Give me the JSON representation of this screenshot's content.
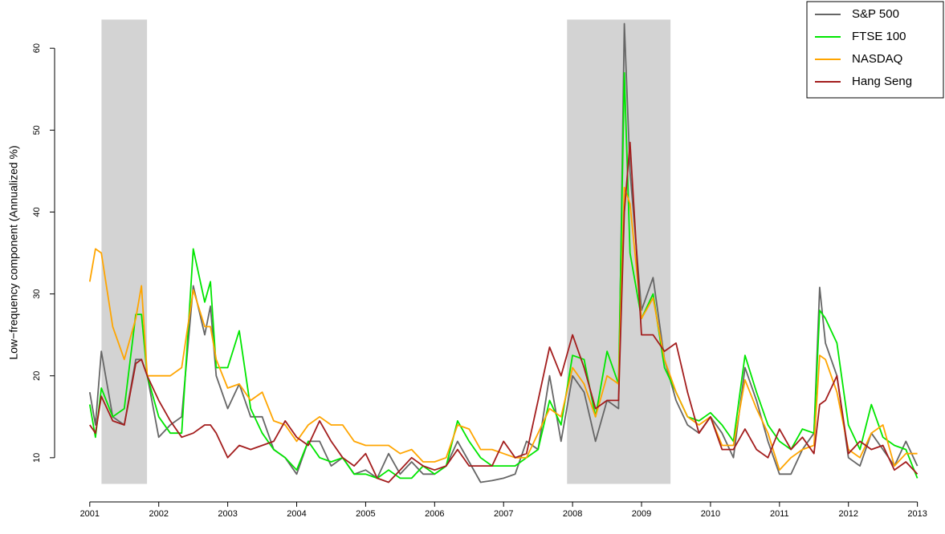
{
  "chart_data": {
    "type": "line",
    "y_label": "Low−frequency component (Annualized %)",
    "xlim": [
      2000.49,
      2013.4
    ],
    "ylim": [
      4.6,
      65.5
    ],
    "xticks": [
      2001,
      2002,
      2003,
      2004,
      2005,
      2006,
      2007,
      2008,
      2009,
      2010,
      2011,
      2012,
      2013
    ],
    "yticks": [
      10,
      20,
      30,
      40,
      50,
      60
    ],
    "legend": "topright",
    "shade_color": "#d3d3d3",
    "shaded_regions": [
      {
        "x": [
          2001.17,
          2001.83
        ],
        "y": [
          6.8,
          63.5
        ]
      },
      {
        "x": [
          2007.92,
          2009.42
        ],
        "y": [
          6.8,
          63.5
        ]
      }
    ],
    "x": [
      2001.0,
      2001.083,
      2001.167,
      2001.333,
      2001.5,
      2001.667,
      2001.75,
      2001.833,
      2002.0,
      2002.167,
      2002.333,
      2002.5,
      2002.667,
      2002.75,
      2002.833,
      2003.0,
      2003.167,
      2003.333,
      2003.5,
      2003.667,
      2003.833,
      2004.0,
      2004.167,
      2004.333,
      2004.5,
      2004.667,
      2004.833,
      2005.0,
      2005.167,
      2005.333,
      2005.5,
      2005.667,
      2005.833,
      2006.0,
      2006.167,
      2006.333,
      2006.5,
      2006.667,
      2006.833,
      2007.0,
      2007.167,
      2007.333,
      2007.5,
      2007.667,
      2007.833,
      2008.0,
      2008.167,
      2008.333,
      2008.5,
      2008.667,
      2008.75,
      2008.833,
      2009.0,
      2009.167,
      2009.333,
      2009.5,
      2009.667,
      2009.833,
      2010.0,
      2010.167,
      2010.333,
      2010.5,
      2010.667,
      2010.833,
      2011.0,
      2011.167,
      2011.333,
      2011.5,
      2011.583,
      2011.667,
      2011.833,
      2012.0,
      2012.167,
      2012.333,
      2012.5,
      2012.667,
      2012.833,
      2013.0
    ],
    "series": [
      {
        "name": "S&P 500",
        "color": "#666666",
        "values": [
          18,
          14,
          23,
          15,
          14,
          22,
          22,
          20,
          12.5,
          14,
          15,
          31,
          25,
          28.5,
          20,
          16,
          19,
          15,
          15,
          11,
          10,
          8,
          12,
          12,
          9,
          10,
          8,
          8.5,
          7.5,
          10.5,
          8,
          9.5,
          8,
          8,
          9,
          12,
          9.5,
          7,
          7.2,
          7.5,
          8,
          12,
          11,
          20,
          12,
          20,
          18,
          12,
          17,
          16,
          63,
          45,
          28,
          32,
          22,
          17,
          14,
          13,
          15,
          13,
          10,
          21,
          17,
          12,
          8,
          8,
          11,
          13,
          30.8,
          24,
          20,
          10,
          9,
          13,
          11,
          9,
          12,
          9
        ]
      },
      {
        "name": "FTSE 100",
        "color": "#00e600",
        "values": [
          16.5,
          12.5,
          18.5,
          15,
          16,
          27.5,
          27.5,
          20,
          15,
          13,
          13,
          35.5,
          29,
          31.5,
          21,
          21,
          25.5,
          16,
          13,
          11,
          10,
          8.5,
          12,
          10,
          9.5,
          10,
          8,
          8,
          7.5,
          8.5,
          7.5,
          7.5,
          9,
          8,
          9,
          14.5,
          12,
          10,
          9,
          9,
          9,
          10,
          11,
          17,
          14,
          22.5,
          22,
          15,
          23,
          19,
          57,
          35,
          27,
          30,
          21,
          18,
          15,
          14.5,
          15.5,
          14,
          12,
          22.5,
          18,
          14,
          12,
          11,
          13.5,
          13,
          28,
          27,
          24,
          14,
          11,
          16.5,
          12.5,
          11.5,
          11,
          7.5
        ]
      },
      {
        "name": "NASDAQ",
        "color": "#ffa500",
        "values": [
          31.5,
          35.5,
          35,
          26,
          22,
          27,
          31,
          20,
          20,
          20,
          21,
          30.5,
          26,
          26,
          22,
          18.5,
          19,
          17,
          18,
          14.5,
          14,
          12,
          14,
          15,
          14,
          14,
          12,
          11.5,
          11.5,
          11.5,
          10.5,
          11,
          9.5,
          9.5,
          10,
          14,
          13.5,
          11,
          11,
          10.5,
          10,
          10,
          13,
          16,
          15,
          21,
          19,
          15,
          20,
          19,
          43,
          41,
          27,
          29.5,
          22,
          18,
          15,
          14,
          15,
          11.5,
          11.5,
          19.5,
          16,
          13,
          8.5,
          10,
          11,
          11.5,
          22.5,
          22,
          18,
          11,
          10,
          13,
          14,
          9,
          10.5,
          10.5
        ]
      },
      {
        "name": "Hang Seng",
        "color": "#a31d1d",
        "values": [
          14,
          13,
          17.5,
          14.5,
          14,
          21.5,
          22,
          20,
          17,
          14.5,
          12.5,
          13,
          14,
          14,
          13,
          10,
          11.5,
          11,
          11.5,
          12,
          14.5,
          12.5,
          11.5,
          14.5,
          12,
          10,
          9,
          10.5,
          7.5,
          7,
          8.5,
          10,
          9,
          8.5,
          9,
          11,
          9,
          9,
          9,
          12,
          10,
          10.5,
          17,
          23.5,
          20,
          25,
          21,
          16,
          17,
          17,
          40,
          48.5,
          25,
          25,
          23,
          24,
          18,
          13,
          15,
          11,
          11,
          13.5,
          11,
          10,
          13.5,
          11,
          12.5,
          10.5,
          16.5,
          17,
          20,
          10.5,
          12,
          11,
          11.5,
          8.5,
          9.5,
          8
        ]
      }
    ]
  }
}
